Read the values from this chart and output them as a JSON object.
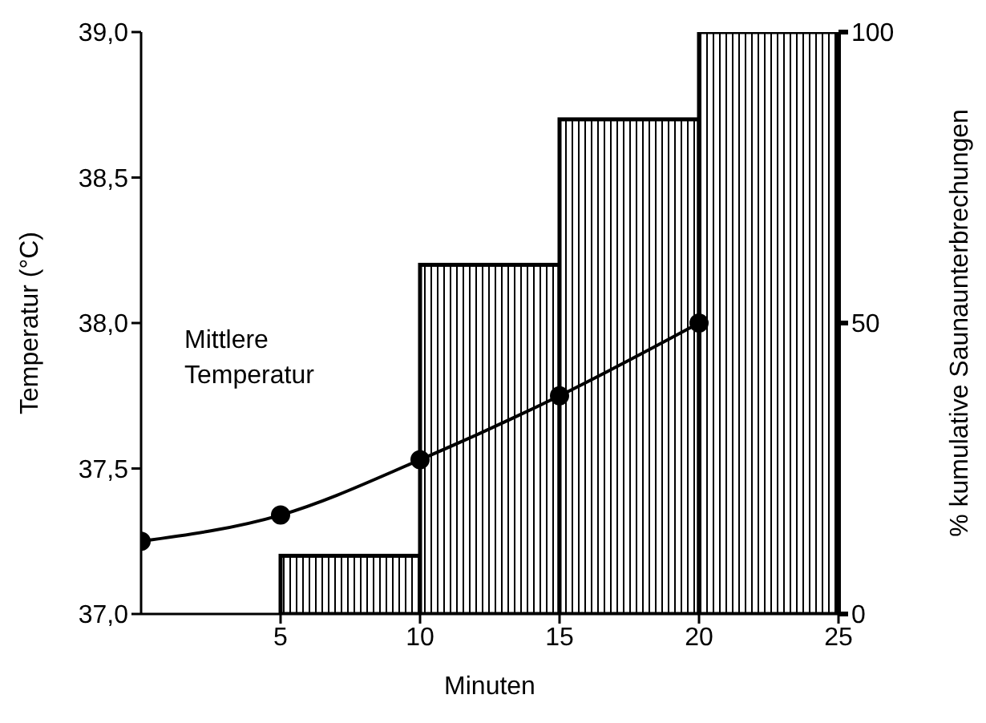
{
  "chart_data": {
    "type": "histogram",
    "xlabel": "Minuten",
    "ylabel": "Temperatur (°C)",
    "y2label": "% kumulative Saunaunterbrechungen",
    "xlim": [
      0,
      25
    ],
    "xticks": [
      5,
      10,
      15,
      20,
      25
    ],
    "ylim": [
      37,
      39
    ],
    "yticks": [
      {
        "value": 37,
        "label": "37,0"
      },
      {
        "value": 37.5,
        "label": "37,5"
      },
      {
        "value": 38,
        "label": "38,0"
      },
      {
        "value": 38.5,
        "label": "38,5"
      },
      {
        "value": 39,
        "label": "39,0"
      }
    ],
    "y2lim": [
      0,
      100
    ],
    "y2ticks": [
      0,
      50,
      100
    ],
    "marker": "circle",
    "line_style": "solid",
    "series": [
      {
        "axis": "y2",
        "color": "#000000",
        "bins": [
          5,
          10,
          15,
          20,
          25
        ],
        "values": [
          10,
          60,
          85,
          100
        ]
      },
      {
        "type": "line",
        "name": "Mittlere Temperatur",
        "color": "#000000",
        "x": [
          0,
          5,
          10,
          15,
          20
        ],
        "values": [
          37.25,
          37.34,
          37.53,
          37.75,
          38.0
        ]
      }
    ]
  }
}
